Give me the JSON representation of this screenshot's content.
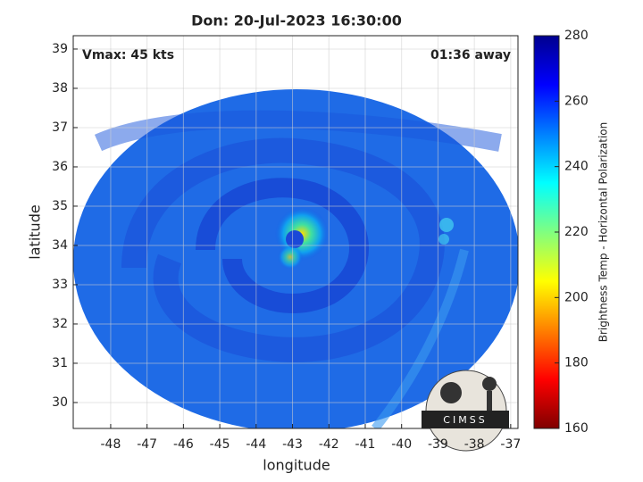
{
  "chart_data": {
    "type": "image",
    "title": "Don: 20-Jul-2023 16:30:00",
    "annotations": [
      "Vmax: 45 kts",
      "01:36 away"
    ],
    "xlabel": "longitude",
    "ylabel": "latitude",
    "xlim": [
      -49.03,
      -36.8
    ],
    "ylim": [
      29.34,
      39.34
    ],
    "xticks": [
      -48,
      -47,
      -46,
      -45,
      -44,
      -43,
      -42,
      -41,
      -40,
      -39,
      -38,
      -37
    ],
    "yticks": [
      30,
      31,
      32,
      33,
      34,
      35,
      36,
      37,
      38,
      39
    ],
    "grid": true,
    "colorbar": {
      "label": "Brightness Temp - Horizontal Polarization",
      "lim": [
        160,
        280
      ],
      "ticks": [
        160,
        180,
        200,
        220,
        240,
        260,
        280
      ],
      "colormap": [
        "#7f0000",
        "#ff0000",
        "#ff8000",
        "#ffff00",
        "#80ff80",
        "#00ffff",
        "#0080ff",
        "#0000ff",
        "#00008f"
      ]
    },
    "logo": "CIMSS"
  }
}
